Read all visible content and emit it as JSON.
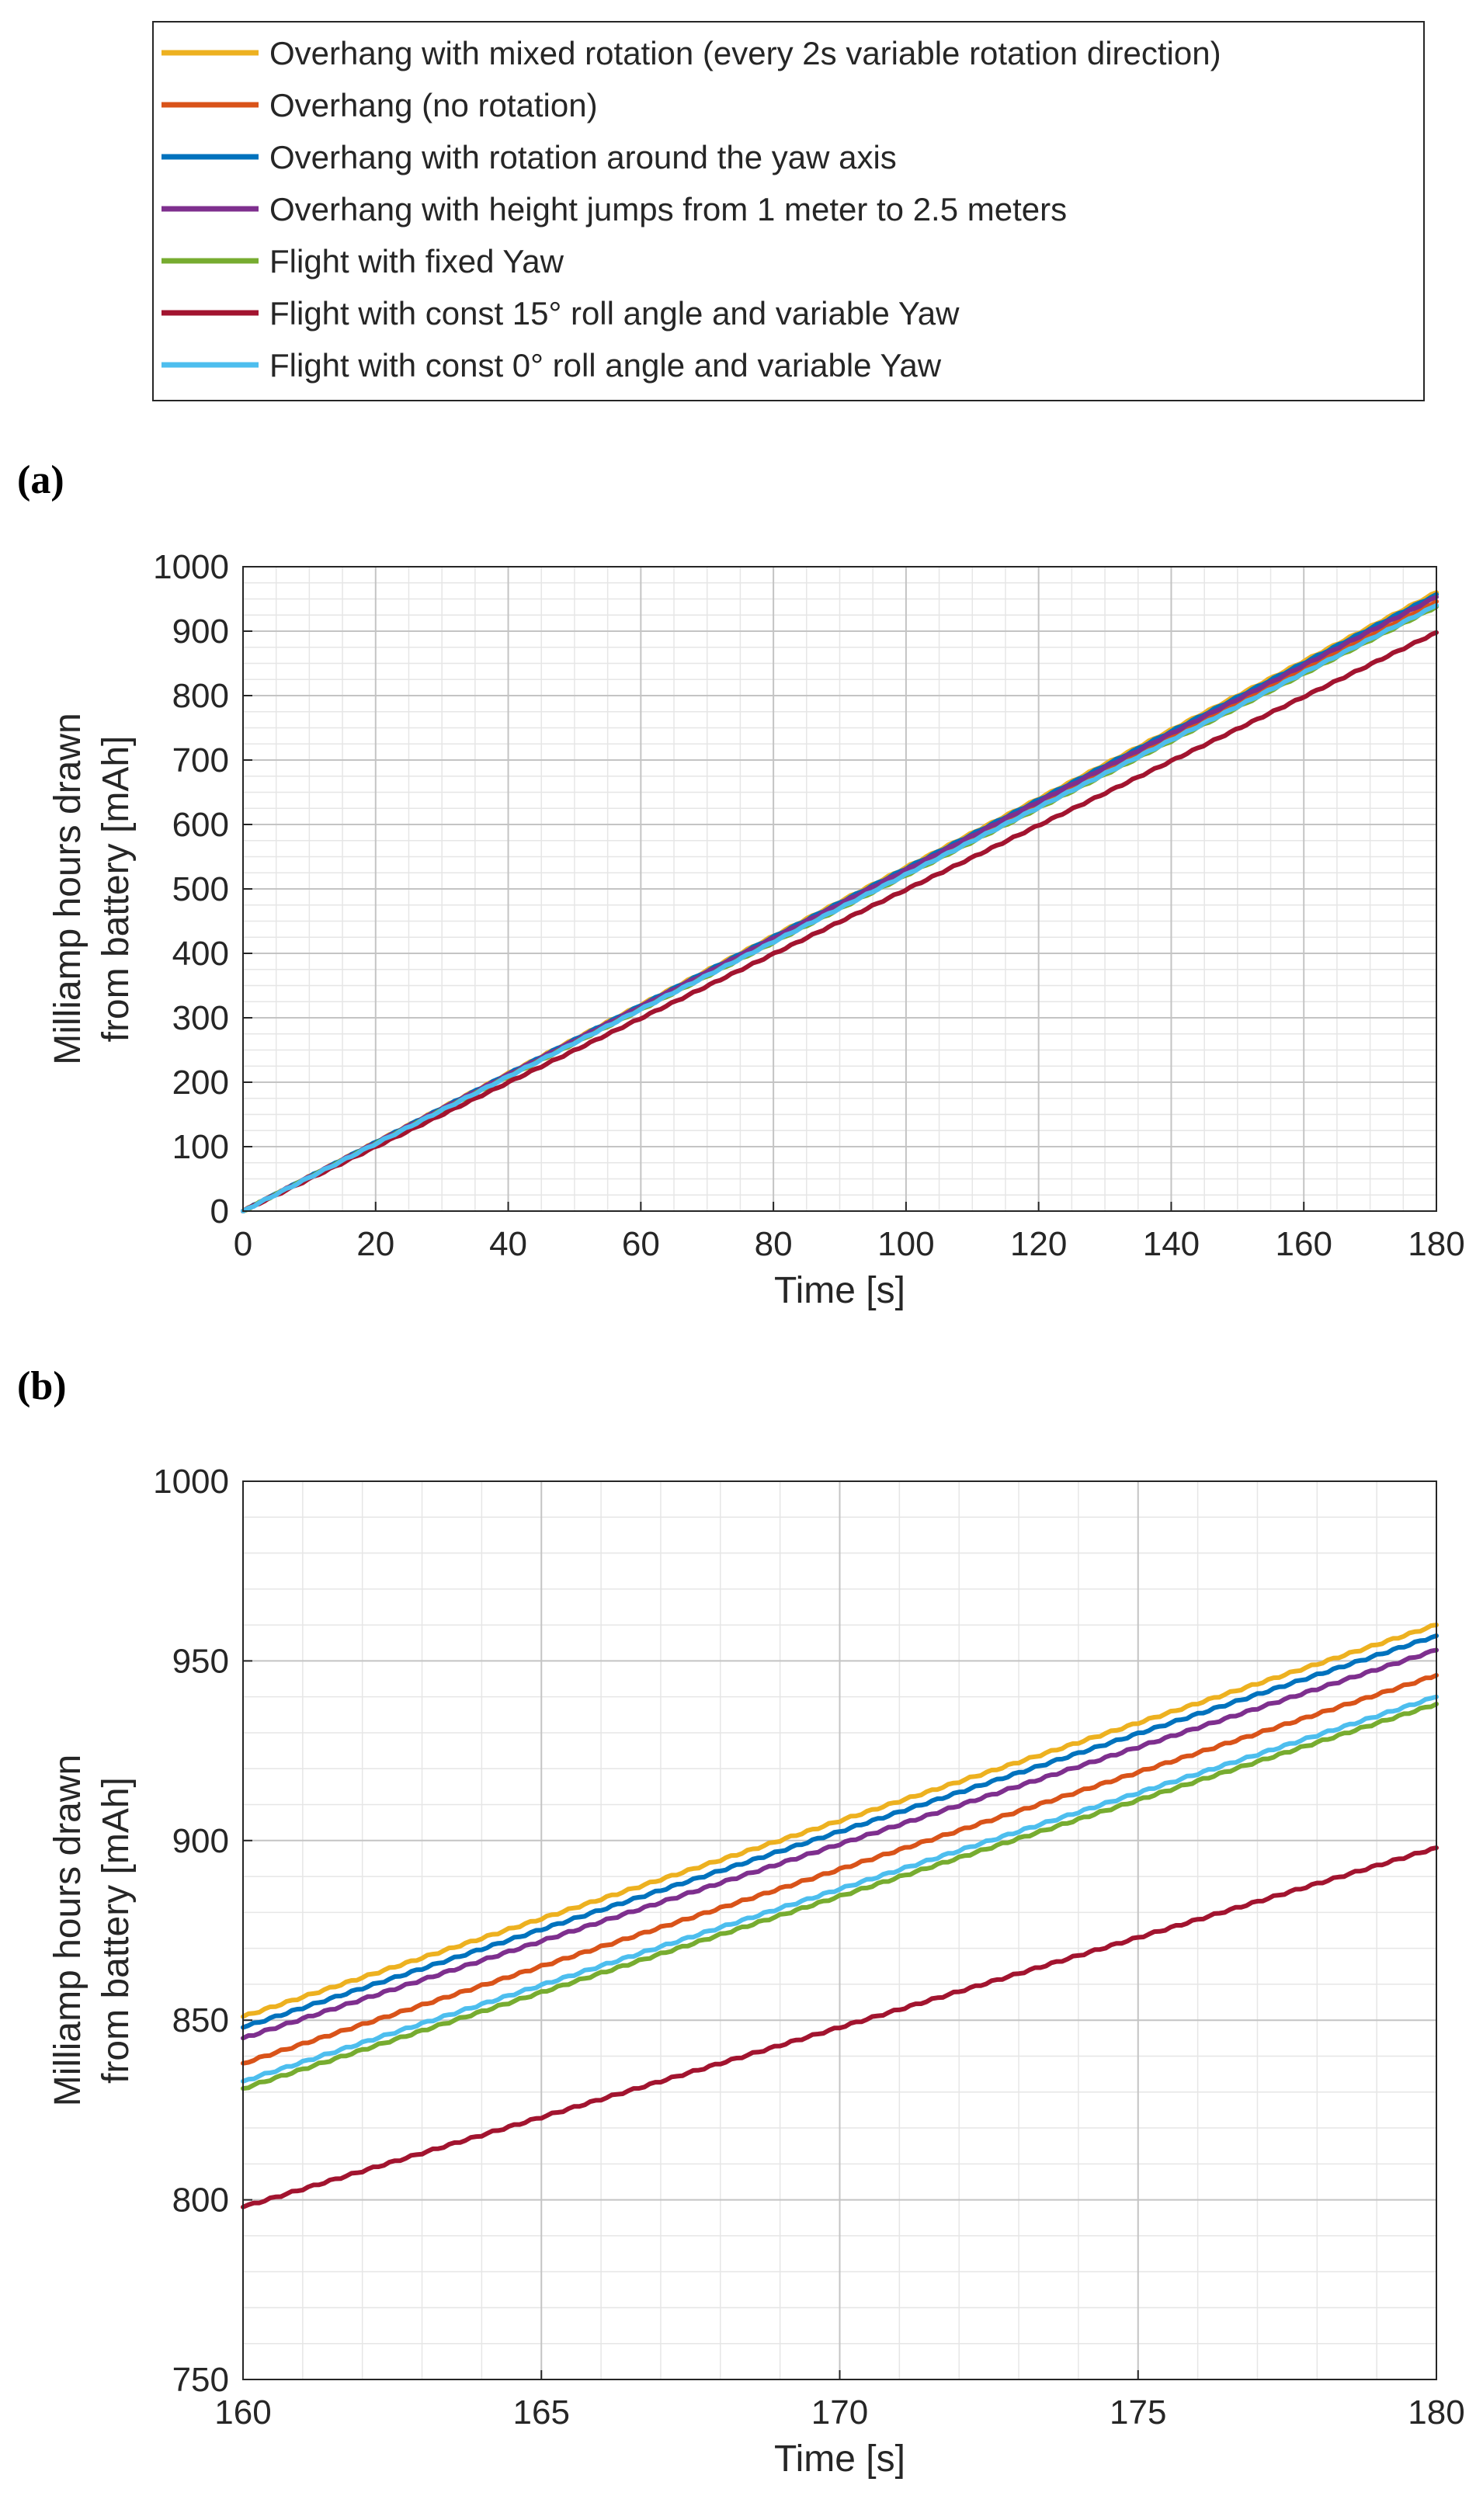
{
  "legend": {
    "entries": [
      {
        "label": "Overhang with mixed rotation (every 2s variable rotation direction)",
        "color": "#EDB120"
      },
      {
        "label": "Overhang (no rotation)",
        "color": "#D95319"
      },
      {
        "label": "Overhang with rotation around the yaw axis",
        "color": "#0072BD"
      },
      {
        "label": "Overhang with height jumps from 1 meter to 2.5 meters",
        "color": "#7E2F8E"
      },
      {
        "label": "Flight with fixed Yaw",
        "color": "#77AC30"
      },
      {
        "label": "Flight with const 15° roll angle and variable Yaw",
        "color": "#A2142F"
      },
      {
        "label": "Flight with const 0° roll angle and variable Yaw",
        "color": "#4DBEEE"
      }
    ]
  },
  "panels": {
    "a": {
      "label": "(a)"
    },
    "b": {
      "label": "(b)"
    }
  },
  "chart_data": [
    {
      "id": "a",
      "type": "line",
      "title": "",
      "xlabel": "Time [s]",
      "ylabel_lines": [
        "Milliamp hours drawn",
        "from battery [mAh]"
      ],
      "xlim": [
        0,
        180
      ],
      "ylim": [
        0,
        1000
      ],
      "xticks": [
        0,
        20,
        40,
        60,
        80,
        100,
        120,
        140,
        160,
        180
      ],
      "yticks": [
        0,
        100,
        200,
        300,
        400,
        500,
        600,
        700,
        800,
        900,
        1000
      ],
      "xtick_labels": [
        "0",
        "20",
        "40",
        "60",
        "80",
        "100",
        "120",
        "140",
        "160",
        "180"
      ],
      "ytick_labels": [
        "0",
        "100",
        "200",
        "300",
        "400",
        "500",
        "600",
        "700",
        "800",
        "900",
        "1000"
      ],
      "minor_x_step": 5,
      "minor_y_step": 25,
      "grid": true,
      "series": [
        {
          "name": "Overhang with mixed rotation (every 2s variable rotation direction)",
          "color": "#EDB120",
          "x": [
            0,
            180
          ],
          "y": [
            0,
            960
          ]
        },
        {
          "name": "Overhang (no rotation)",
          "color": "#D95319",
          "x": [
            0,
            180
          ],
          "y": [
            0,
            946
          ]
        },
        {
          "name": "Overhang with rotation around the yaw axis",
          "color": "#0072BD",
          "x": [
            0,
            180
          ],
          "y": [
            0,
            957
          ]
        },
        {
          "name": "Overhang with height jumps from 1 meter to 2.5 meters",
          "color": "#7E2F8E",
          "x": [
            0,
            180
          ],
          "y": [
            0,
            953
          ]
        },
        {
          "name": "Flight with fixed Yaw",
          "color": "#77AC30",
          "x": [
            0,
            180
          ],
          "y": [
            0,
            938
          ]
        },
        {
          "name": "Flight with const 15° roll angle and variable Yaw",
          "color": "#A2142F",
          "x": [
            0,
            180
          ],
          "y": [
            0,
            898
          ]
        },
        {
          "name": "Flight with const 0° roll angle and variable Yaw",
          "color": "#4DBEEE",
          "x": [
            0,
            180
          ],
          "y": [
            0,
            940
          ]
        }
      ]
    },
    {
      "id": "b",
      "type": "line",
      "title": "",
      "xlabel": "Time [s]",
      "ylabel_lines": [
        "Milliamp hours drawn",
        "from battery [mAh]"
      ],
      "xlim": [
        160,
        180
      ],
      "ylim": [
        750,
        1000
      ],
      "xticks": [
        160,
        165,
        170,
        175,
        180
      ],
      "yticks": [
        750,
        800,
        850,
        900,
        950,
        1000
      ],
      "xtick_labels": [
        "160",
        "165",
        "170",
        "175",
        "180"
      ],
      "ytick_labels": [
        "750",
        "800",
        "850",
        "900",
        "950",
        "1000"
      ],
      "minor_x_step": 1,
      "minor_y_step": 10,
      "grid": true,
      "series": [
        {
          "name": "Overhang with mixed rotation (every 2s variable rotation direction)",
          "color": "#EDB120",
          "x": [
            160,
            180
          ],
          "y": [
            851,
            960
          ]
        },
        {
          "name": "Overhang (no rotation)",
          "color": "#D95319",
          "x": [
            160,
            180
          ],
          "y": [
            838,
            946
          ]
        },
        {
          "name": "Overhang with rotation around the yaw axis",
          "color": "#0072BD",
          "x": [
            160,
            180
          ],
          "y": [
            848,
            957
          ]
        },
        {
          "name": "Overhang with height jumps from 1 meter to 2.5 meters",
          "color": "#7E2F8E",
          "x": [
            160,
            180
          ],
          "y": [
            845,
            953
          ]
        },
        {
          "name": "Flight with fixed Yaw",
          "color": "#77AC30",
          "x": [
            160,
            180
          ],
          "y": [
            831,
            938
          ]
        },
        {
          "name": "Flight with const 15° roll angle and variable Yaw",
          "color": "#A2142F",
          "x": [
            160,
            180
          ],
          "y": [
            798,
            898
          ]
        },
        {
          "name": "Flight with const 0° roll angle and variable Yaw",
          "color": "#4DBEEE",
          "x": [
            160,
            180
          ],
          "y": [
            833,
            940
          ]
        }
      ]
    }
  ]
}
